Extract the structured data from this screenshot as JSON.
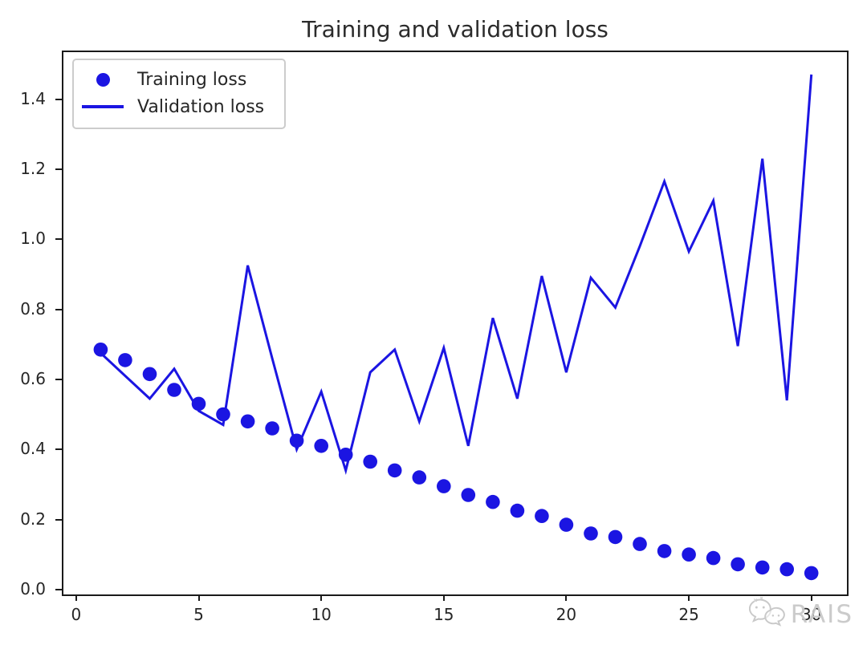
{
  "title": "Training and validation loss",
  "watermark": {
    "text": "RAIS",
    "logo": "wechat-bubbles-icon"
  },
  "colors": {
    "series_blue": "#1b15e2",
    "text": "#262626",
    "spine": "#1a1a1a",
    "legend_border": "#cccccc",
    "watermark_gray": "#c9c9c9"
  },
  "chart_data": {
    "type": "line",
    "title": "Training and validation loss",
    "xlabel": "",
    "ylabel": "",
    "grid": false,
    "legend_position": "upper left",
    "x": [
      1,
      2,
      3,
      4,
      5,
      6,
      7,
      8,
      9,
      10,
      11,
      12,
      13,
      14,
      15,
      16,
      17,
      18,
      19,
      20,
      21,
      22,
      23,
      24,
      25,
      26,
      27,
      28,
      29,
      30
    ],
    "xticks": [
      0,
      5,
      10,
      15,
      20,
      25,
      30
    ],
    "yticks": [
      0.0,
      0.2,
      0.4,
      0.6,
      0.8,
      1.0,
      1.2,
      1.4
    ],
    "xlim": [
      -0.52,
      31.45
    ],
    "ylim": [
      -0.014,
      1.534
    ],
    "series": [
      {
        "name": "Training loss",
        "style": "scatter",
        "marker": "circle",
        "values": [
          0.685,
          0.655,
          0.615,
          0.57,
          0.53,
          0.5,
          0.48,
          0.46,
          0.425,
          0.41,
          0.385,
          0.365,
          0.34,
          0.32,
          0.295,
          0.27,
          0.25,
          0.225,
          0.21,
          0.185,
          0.16,
          0.15,
          0.13,
          0.11,
          0.1,
          0.09,
          0.072,
          0.063,
          0.058,
          0.047
        ]
      },
      {
        "name": "Validation loss",
        "style": "line",
        "values": [
          0.675,
          0.61,
          0.545,
          0.63,
          0.51,
          0.47,
          0.925,
          0.66,
          0.4,
          0.565,
          0.34,
          0.62,
          0.685,
          0.48,
          0.69,
          0.41,
          0.775,
          0.545,
          0.895,
          0.62,
          0.89,
          0.805,
          0.98,
          1.165,
          0.965,
          1.11,
          0.695,
          1.23,
          0.54,
          1.47
        ]
      }
    ]
  }
}
